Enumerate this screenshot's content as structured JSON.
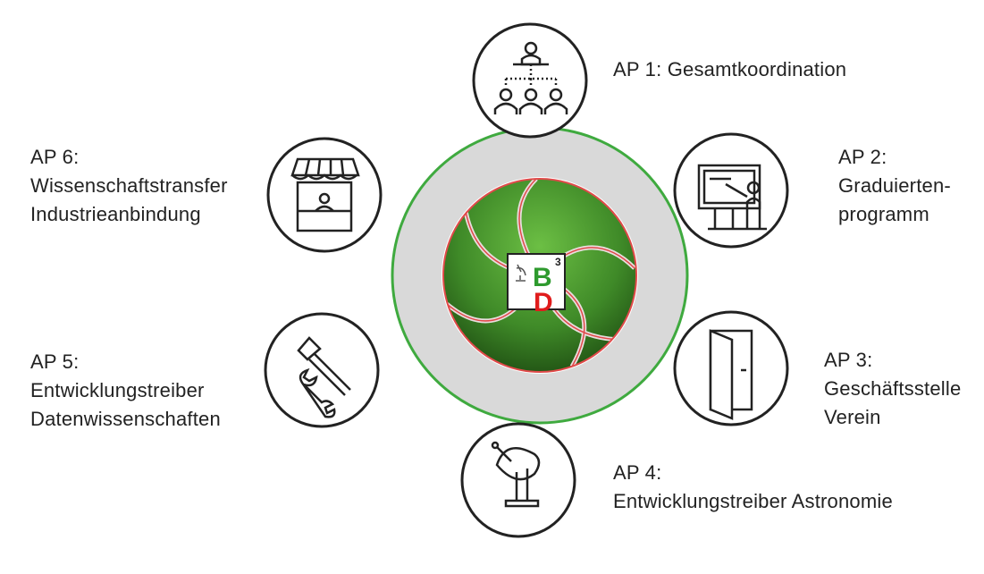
{
  "work_packages": [
    {
      "icon": "coordination-icon",
      "lines": [
        "AP 1: Gesamtkoordination"
      ]
    },
    {
      "icon": "presentation-icon",
      "lines": [
        "AP 2:",
        "Graduierten-",
        "programm"
      ]
    },
    {
      "icon": "door-icon",
      "lines": [
        "AP 3:",
        "Geschäftsstelle",
        "Verein"
      ]
    },
    {
      "icon": "satellite-dish-icon",
      "lines": [
        "AP 4:",
        "Entwicklungstreiber Astronomie"
      ]
    },
    {
      "icon": "tools-icon",
      "lines": [
        "AP 5:",
        "Entwicklungstreiber",
        "Datenwissenschaften"
      ]
    },
    {
      "icon": "market-stall-icon",
      "lines": [
        "AP 6:",
        "Wissenschaftstransfer",
        "Industrieanbindung"
      ]
    }
  ],
  "center_logo": {
    "letters": [
      "B",
      "D"
    ],
    "superscript": "3"
  },
  "colors": {
    "ring_fill": "#d9d9d9",
    "ring_border": "#3faa3f",
    "aperture_dark": "#1f4d12",
    "aperture_light": "#58a836",
    "blade_edge": "#e04a4a",
    "logo_green": "#2e9a2e",
    "logo_red": "#e01c1c",
    "icon_stroke": "#222222"
  }
}
